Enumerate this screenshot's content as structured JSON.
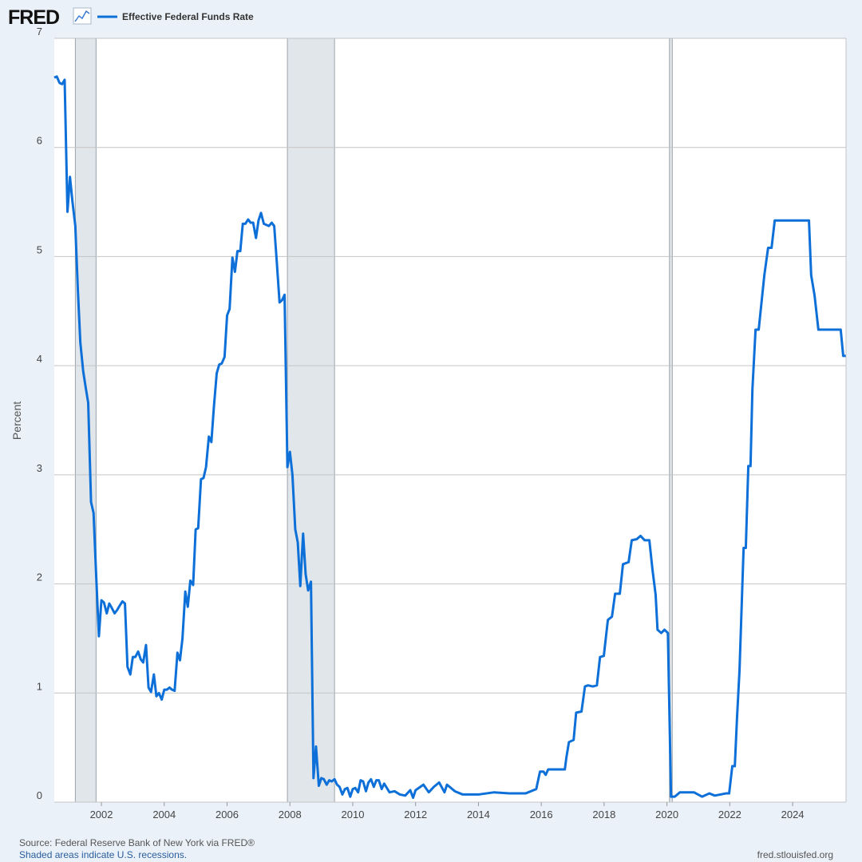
{
  "header": {
    "logo": "FRED"
  },
  "chart_data": {
    "type": "line",
    "y_label": "Percent",
    "x": [
      2000.5,
      2000.58,
      2000.67,
      2000.75,
      2000.83,
      2000.92,
      2001.0,
      2001.08,
      2001.17,
      2001.25,
      2001.33,
      2001.42,
      2001.5,
      2001.58,
      2001.67,
      2001.75,
      2001.83,
      2001.92,
      2002.0,
      2002.08,
      2002.17,
      2002.25,
      2002.33,
      2002.42,
      2002.5,
      2002.58,
      2002.67,
      2002.75,
      2002.83,
      2002.92,
      2003.0,
      2003.08,
      2003.17,
      2003.25,
      2003.33,
      2003.42,
      2003.5,
      2003.58,
      2003.67,
      2003.75,
      2003.83,
      2003.92,
      2004.0,
      2004.08,
      2004.17,
      2004.25,
      2004.33,
      2004.42,
      2004.5,
      2004.58,
      2004.67,
      2004.75,
      2004.83,
      2004.92,
      2005.0,
      2005.08,
      2005.17,
      2005.25,
      2005.33,
      2005.42,
      2005.5,
      2005.58,
      2005.67,
      2005.75,
      2005.83,
      2005.92,
      2006.0,
      2006.08,
      2006.17,
      2006.25,
      2006.33,
      2006.42,
      2006.5,
      2006.58,
      2006.67,
      2006.75,
      2006.83,
      2006.92,
      2007.0,
      2007.08,
      2007.17,
      2007.25,
      2007.33,
      2007.42,
      2007.5,
      2007.58,
      2007.67,
      2007.75,
      2007.83,
      2007.92,
      2008.0,
      2008.08,
      2008.17,
      2008.25,
      2008.33,
      2008.42,
      2008.5,
      2008.58,
      2008.67,
      2008.75,
      2008.83,
      2008.92,
      2009.0,
      2009.08,
      2009.17,
      2009.25,
      2009.33,
      2009.42,
      2009.5,
      2009.58,
      2009.67,
      2009.75,
      2009.83,
      2009.92,
      2010.0,
      2010.08,
      2010.17,
      2010.25,
      2010.33,
      2010.42,
      2010.5,
      2010.58,
      2010.67,
      2010.75,
      2010.83,
      2010.92,
      2011.0,
      2011.17,
      2011.33,
      2011.5,
      2011.67,
      2011.83,
      2011.92,
      2012.0,
      2012.25,
      2012.42,
      2012.58,
      2012.75,
      2012.92,
      2013.0,
      2013.25,
      2013.5,
      2014.0,
      2014.5,
      2015.0,
      2015.5,
      2015.84,
      2015.96,
      2016.07,
      2016.14,
      2016.22,
      2016.75,
      2016.8,
      2016.88,
      2017.03,
      2017.11,
      2017.28,
      2017.39,
      2017.49,
      2017.64,
      2017.77,
      2017.87,
      2017.99,
      2018.12,
      2018.25,
      2018.35,
      2018.5,
      2018.6,
      2018.78,
      2018.88,
      2019.04,
      2019.16,
      2019.29,
      2019.44,
      2019.54,
      2019.64,
      2019.7,
      2019.82,
      2019.92,
      2020.03,
      2020.13,
      2020.25,
      2020.41,
      2020.61,
      2020.86,
      2021.12,
      2021.35,
      2021.52,
      2021.88,
      2021.98,
      2022.08,
      2022.16,
      2022.23,
      2022.31,
      2022.44,
      2022.51,
      2022.59,
      2022.66,
      2022.72,
      2022.82,
      2022.92,
      2023.1,
      2023.22,
      2023.33,
      2023.43,
      2024.52,
      2024.59,
      2024.7,
      2024.82,
      2025.53,
      2025.61,
      2025.69
    ],
    "series": [
      {
        "name": "Effective Federal Funds Rate",
        "color": "#0d6fd8",
        "values": [
          6.64,
          6.65,
          6.59,
          6.58,
          6.62,
          5.41,
          5.73,
          5.5,
          5.28,
          4.7,
          4.21,
          3.95,
          3.8,
          3.66,
          2.75,
          2.65,
          2.1,
          1.52,
          1.85,
          1.83,
          1.73,
          1.82,
          1.78,
          1.73,
          1.76,
          1.8,
          1.84,
          1.82,
          1.24,
          1.17,
          1.33,
          1.33,
          1.38,
          1.31,
          1.28,
          1.44,
          1.05,
          1.01,
          1.17,
          0.97,
          1.0,
          0.94,
          1.03,
          1.03,
          1.05,
          1.03,
          1.02,
          1.37,
          1.3,
          1.5,
          1.93,
          1.79,
          2.03,
          1.99,
          2.5,
          2.51,
          2.96,
          2.97,
          3.07,
          3.35,
          3.3,
          3.62,
          3.93,
          4.01,
          4.02,
          4.08,
          4.46,
          4.52,
          4.99,
          4.86,
          5.05,
          5.05,
          5.3,
          5.3,
          5.34,
          5.31,
          5.31,
          5.17,
          5.33,
          5.4,
          5.3,
          5.29,
          5.28,
          5.31,
          5.28,
          4.96,
          4.58,
          4.6,
          4.65,
          3.07,
          3.21,
          3.0,
          2.5,
          2.38,
          1.98,
          2.46,
          2.09,
          1.94,
          2.02,
          0.22,
          0.51,
          0.15,
          0.22,
          0.21,
          0.16,
          0.2,
          0.19,
          0.21,
          0.16,
          0.14,
          0.07,
          0.12,
          0.13,
          0.05,
          0.12,
          0.13,
          0.09,
          0.2,
          0.19,
          0.1,
          0.18,
          0.21,
          0.14,
          0.2,
          0.2,
          0.12,
          0.17,
          0.09,
          0.1,
          0.07,
          0.06,
          0.11,
          0.04,
          0.11,
          0.16,
          0.09,
          0.14,
          0.18,
          0.09,
          0.16,
          0.1,
          0.07,
          0.07,
          0.09,
          0.08,
          0.08,
          0.12,
          0.28,
          0.28,
          0.25,
          0.3,
          0.3,
          0.41,
          0.55,
          0.57,
          0.82,
          0.83,
          1.06,
          1.07,
          1.06,
          1.07,
          1.33,
          1.34,
          1.67,
          1.7,
          1.91,
          1.91,
          2.18,
          2.2,
          2.4,
          2.41,
          2.44,
          2.4,
          2.4,
          2.13,
          1.9,
          1.58,
          1.55,
          1.58,
          1.55,
          0.05,
          0.05,
          0.09,
          0.09,
          0.09,
          0.05,
          0.08,
          0.06,
          0.08,
          0.08,
          0.33,
          0.33,
          0.77,
          1.21,
          2.33,
          2.33,
          3.08,
          3.08,
          3.78,
          4.33,
          4.33,
          4.83,
          5.08,
          5.08,
          5.33,
          5.33,
          4.83,
          4.64,
          4.33,
          4.33,
          4.09,
          4.09
        ]
      }
    ],
    "xlim": [
      2000.5,
      2025.7
    ],
    "xticks": [
      2002,
      2004,
      2006,
      2008,
      2010,
      2012,
      2014,
      2016,
      2018,
      2020,
      2022,
      2024
    ],
    "ylim": [
      0,
      7
    ],
    "yticks": [
      0,
      1,
      2,
      3,
      4,
      5,
      6,
      7
    ],
    "grid": true,
    "recessions": [
      [
        2001.17,
        2001.83
      ],
      [
        2007.92,
        2009.42
      ],
      [
        2020.08,
        2020.17
      ]
    ],
    "source": "Source: Federal Reserve Bank of New York via FRED®",
    "note": "Shaded areas indicate U.S. recessions.",
    "site": "fred.stlouisfed.org"
  }
}
